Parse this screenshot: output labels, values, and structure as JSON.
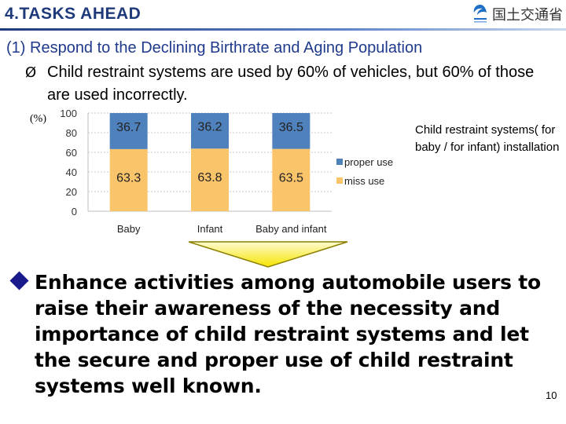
{
  "header": {
    "title": "4.TASKS AHEAD",
    "logo_text": "国土交通省",
    "logo_icon": "mlit-logo-icon"
  },
  "section": {
    "heading": "(1) Respond to the Declining Birthrate and Aging Population",
    "bullet_arrow": "Ø",
    "bullet_text": "Child restraint systems are used by 60% of vehicles, but 60% of those are used incorrectly."
  },
  "chart_data": {
    "type": "bar",
    "stacked": true,
    "unit_label": "(%)",
    "categories": [
      "Baby",
      "Infant",
      "Baby and infant"
    ],
    "series": [
      {
        "name": "proper use",
        "values": [
          36.7,
          36.2,
          36.5
        ],
        "color": "#4f81bd"
      },
      {
        "name": "miss use",
        "values": [
          63.3,
          63.8,
          63.5
        ],
        "color": "#fac46a"
      }
    ],
    "bar_colors": {
      "miss_use": "#fac46a",
      "proper_use": "#4f81bd"
    },
    "y_ticks": [
      0,
      20,
      40,
      60,
      80,
      100
    ],
    "ylim": [
      0,
      100
    ],
    "legend_position": "right",
    "grid": true
  },
  "side_note": "Child restraint systems( for baby / for infant) installation",
  "main_message": {
    "text": "Enhance activities among automobile users to raise their awareness of the necessity and importance of child restraint systems and let the secure and proper use of child restraint systems well known.",
    "bullet_color": "#1a1a8c"
  },
  "page_number": "10"
}
